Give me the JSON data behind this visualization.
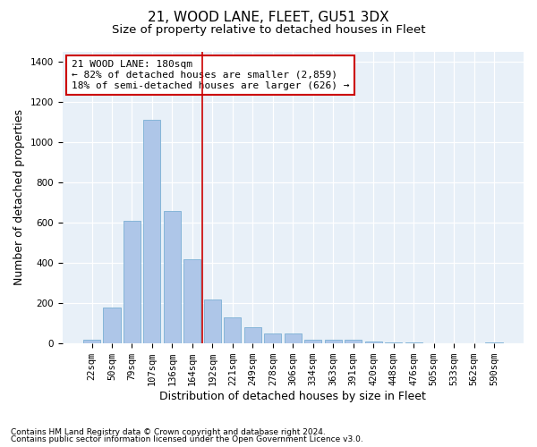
{
  "title": "21, WOOD LANE, FLEET, GU51 3DX",
  "subtitle": "Size of property relative to detached houses in Fleet",
  "xlabel": "Distribution of detached houses by size in Fleet",
  "ylabel": "Number of detached properties",
  "footnote1": "Contains HM Land Registry data © Crown copyright and database right 2024.",
  "footnote2": "Contains public sector information licensed under the Open Government Licence v3.0.",
  "annotation_line1": "21 WOOD LANE: 180sqm",
  "annotation_line2": "← 82% of detached houses are smaller (2,859)",
  "annotation_line3": "18% of semi-detached houses are larger (626) →",
  "bar_color": "#aec6e8",
  "bar_edgecolor": "#7bafd4",
  "background_color": "#e8f0f8",
  "vline_color": "#cc0000",
  "annotation_box_edgecolor": "#cc0000",
  "categories": [
    "22sqm",
    "50sqm",
    "79sqm",
    "107sqm",
    "136sqm",
    "164sqm",
    "192sqm",
    "221sqm",
    "249sqm",
    "278sqm",
    "306sqm",
    "334sqm",
    "363sqm",
    "391sqm",
    "420sqm",
    "448sqm",
    "476sqm",
    "505sqm",
    "533sqm",
    "562sqm",
    "590sqm"
  ],
  "values": [
    20,
    180,
    610,
    1110,
    660,
    420,
    220,
    130,
    80,
    50,
    50,
    20,
    20,
    20,
    10,
    5,
    5,
    2,
    2,
    2,
    5
  ],
  "ylim": [
    0,
    1450
  ],
  "yticks": [
    0,
    200,
    400,
    600,
    800,
    1000,
    1200,
    1400
  ],
  "title_fontsize": 11,
  "subtitle_fontsize": 9.5,
  "ylabel_fontsize": 9,
  "xlabel_fontsize": 9,
  "tick_fontsize": 7.5,
  "annotation_fontsize": 8,
  "footnote_fontsize": 6.5,
  "vline_x": 5.5
}
